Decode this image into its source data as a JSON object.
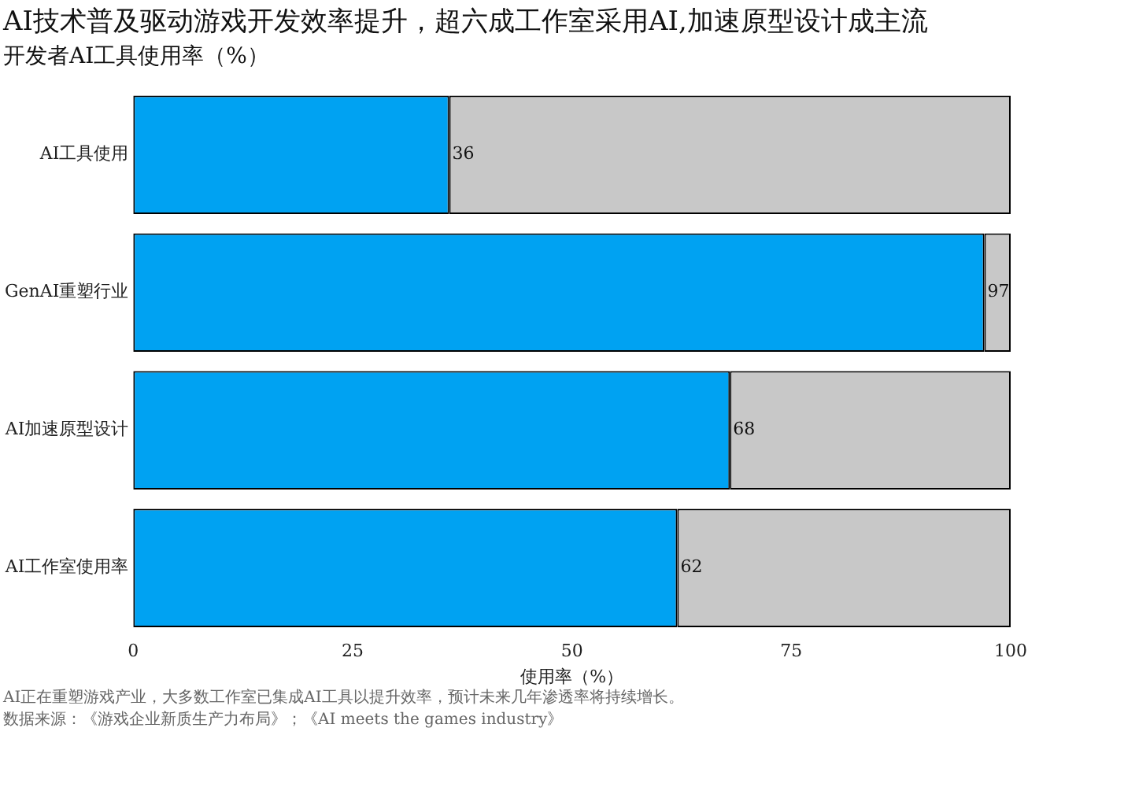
{
  "chart_data": {
    "type": "bar",
    "orientation": "horizontal",
    "stacked": true,
    "title": "AI技术普及驱动游戏开发效率提升，超六成工作室采用AI,加速原型设计成主流",
    "subtitle": "开发者AI工具使用率（%）",
    "xlabel": "使用率（%）",
    "categories": [
      "AI工具使用",
      "GenAI重塑行业",
      "AI加速原型设计",
      "AI工作室使用率"
    ],
    "series": [
      {
        "color": "#00a2f2",
        "values": [
          36,
          97,
          68,
          62
        ],
        "value_labels": [
          "36",
          "97",
          "68",
          "62"
        ]
      },
      {
        "color": "#c8c8c8",
        "values": [
          64,
          3,
          32,
          38
        ]
      }
    ],
    "xlim": [
      0,
      100
    ],
    "xticks": [
      0,
      25,
      50,
      75,
      100
    ],
    "grid": false,
    "legend": false,
    "annotations": [
      "AI正在重塑游戏产业，大多数工作室已集成AI工具以提升效率，预计未来几年渗透率将持续增长。",
      "数据来源：《游戏企业新质生产力布局》；《AI meets the games industry》"
    ]
  }
}
